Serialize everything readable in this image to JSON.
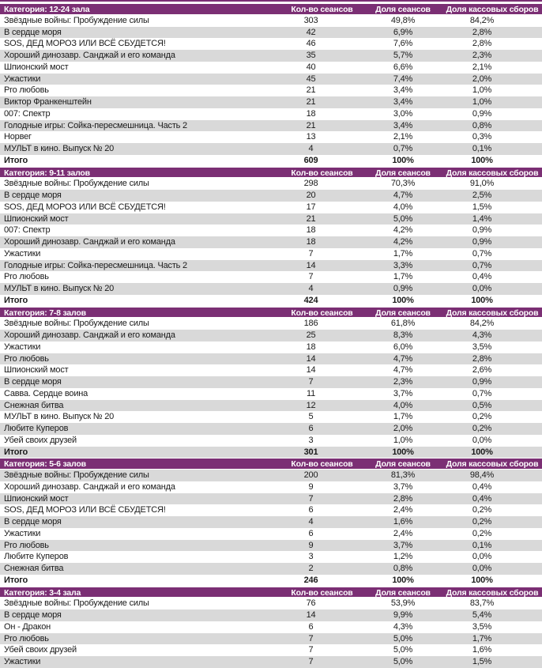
{
  "colors": {
    "header_bg": "#7B2F74",
    "stripe": "#D9D9D9"
  },
  "table": {
    "columns": {
      "sessions": "Кол-во сеансов",
      "session_share": "Доля сеансов",
      "boxoffice_share": "Доля кассовых сборов"
    },
    "total_label": "Итого",
    "sections": [
      {
        "category": "Категория: 12-24 зала",
        "rows": [
          {
            "title": "Звёздные войны: Пробуждение силы",
            "sessions": "303",
            "session_share": "49,8%",
            "boxoffice_share": "84,2%"
          },
          {
            "title": "В сердце моря",
            "sessions": "42",
            "session_share": "6,9%",
            "boxoffice_share": "2,8%"
          },
          {
            "title": "SOS, ДЕД МОРОЗ ИЛИ ВСЁ СБУДЕТСЯ!",
            "sessions": "46",
            "session_share": "7,6%",
            "boxoffice_share": "2,8%"
          },
          {
            "title": "Хороший динозавр. Санджай и его команда",
            "sessions": "35",
            "session_share": "5,7%",
            "boxoffice_share": "2,3%"
          },
          {
            "title": "Шпионский мост",
            "sessions": "40",
            "session_share": "6,6%",
            "boxoffice_share": "2,1%"
          },
          {
            "title": "Ужастики",
            "sessions": "45",
            "session_share": "7,4%",
            "boxoffice_share": "2,0%"
          },
          {
            "title": "Pro любовь",
            "sessions": "21",
            "session_share": "3,4%",
            "boxoffice_share": "1,0%"
          },
          {
            "title": "Виктор Франкенштейн",
            "sessions": "21",
            "session_share": "3,4%",
            "boxoffice_share": "1,0%"
          },
          {
            "title": "007: Спектр",
            "sessions": "18",
            "session_share": "3,0%",
            "boxoffice_share": "0,9%"
          },
          {
            "title": "Голодные игры: Сойка-пересмешница. Часть 2",
            "sessions": "21",
            "session_share": "3,4%",
            "boxoffice_share": "0,8%"
          },
          {
            "title": "Норвег",
            "sessions": "13",
            "session_share": "2,1%",
            "boxoffice_share": "0,3%"
          },
          {
            "title": "МУЛЬТ в кино. Выпуск № 20",
            "sessions": "4",
            "session_share": "0,7%",
            "boxoffice_share": "0,1%"
          }
        ],
        "total": {
          "sessions": "609",
          "session_share": "100%",
          "boxoffice_share": "100%"
        }
      },
      {
        "category": "Категория: 9-11 залов",
        "rows": [
          {
            "title": "Звёздные войны: Пробуждение силы",
            "sessions": "298",
            "session_share": "70,3%",
            "boxoffice_share": "91,0%"
          },
          {
            "title": "В сердце моря",
            "sessions": "20",
            "session_share": "4,7%",
            "boxoffice_share": "2,5%"
          },
          {
            "title": "SOS, ДЕД МОРОЗ ИЛИ ВСЁ СБУДЕТСЯ!",
            "sessions": "17",
            "session_share": "4,0%",
            "boxoffice_share": "1,5%"
          },
          {
            "title": "Шпионский мост",
            "sessions": "21",
            "session_share": "5,0%",
            "boxoffice_share": "1,4%"
          },
          {
            "title": "007: Спектр",
            "sessions": "18",
            "session_share": "4,2%",
            "boxoffice_share": "0,9%"
          },
          {
            "title": "Хороший динозавр. Санджай и его команда",
            "sessions": "18",
            "session_share": "4,2%",
            "boxoffice_share": "0,9%"
          },
          {
            "title": "Ужастики",
            "sessions": "7",
            "session_share": "1,7%",
            "boxoffice_share": "0,7%"
          },
          {
            "title": "Голодные игры: Сойка-пересмешница. Часть 2",
            "sessions": "14",
            "session_share": "3,3%",
            "boxoffice_share": "0,7%"
          },
          {
            "title": "Pro любовь",
            "sessions": "7",
            "session_share": "1,7%",
            "boxoffice_share": "0,4%"
          },
          {
            "title": "МУЛЬТ в кино. Выпуск № 20",
            "sessions": "4",
            "session_share": "0,9%",
            "boxoffice_share": "0,0%"
          }
        ],
        "total": {
          "sessions": "424",
          "session_share": "100%",
          "boxoffice_share": "100%"
        }
      },
      {
        "category": "Категория: 7-8 залов",
        "rows": [
          {
            "title": "Звёздные войны: Пробуждение силы",
            "sessions": "186",
            "session_share": "61,8%",
            "boxoffice_share": "84,2%"
          },
          {
            "title": "Хороший динозавр. Санджай и его команда",
            "sessions": "25",
            "session_share": "8,3%",
            "boxoffice_share": "4,3%"
          },
          {
            "title": "Ужастики",
            "sessions": "18",
            "session_share": "6,0%",
            "boxoffice_share": "3,5%"
          },
          {
            "title": "Pro любовь",
            "sessions": "14",
            "session_share": "4,7%",
            "boxoffice_share": "2,8%"
          },
          {
            "title": "Шпионский мост",
            "sessions": "14",
            "session_share": "4,7%",
            "boxoffice_share": "2,6%"
          },
          {
            "title": "В сердце моря",
            "sessions": "7",
            "session_share": "2,3%",
            "boxoffice_share": "0,9%"
          },
          {
            "title": "Савва. Сердце воина",
            "sessions": "11",
            "session_share": "3,7%",
            "boxoffice_share": "0,7%"
          },
          {
            "title": "Снежная битва",
            "sessions": "12",
            "session_share": "4,0%",
            "boxoffice_share": "0,5%"
          },
          {
            "title": "МУЛЬТ в кино. Выпуск № 20",
            "sessions": "5",
            "session_share": "1,7%",
            "boxoffice_share": "0,2%"
          },
          {
            "title": "Любите Куперов",
            "sessions": "6",
            "session_share": "2,0%",
            "boxoffice_share": "0,2%"
          },
          {
            "title": "Убей своих друзей",
            "sessions": "3",
            "session_share": "1,0%",
            "boxoffice_share": "0,0%"
          }
        ],
        "total": {
          "sessions": "301",
          "session_share": "100%",
          "boxoffice_share": "100%"
        }
      },
      {
        "category": "Категория: 5-6 залов",
        "rows": [
          {
            "title": "Звёздные войны: Пробуждение силы",
            "sessions": "200",
            "session_share": "81,3%",
            "boxoffice_share": "98,4%"
          },
          {
            "title": "Хороший динозавр. Санджай и его команда",
            "sessions": "9",
            "session_share": "3,7%",
            "boxoffice_share": "0,4%"
          },
          {
            "title": "Шпионский мост",
            "sessions": "7",
            "session_share": "2,8%",
            "boxoffice_share": "0,4%"
          },
          {
            "title": "SOS, ДЕД МОРОЗ ИЛИ ВСЁ СБУДЕТСЯ!",
            "sessions": "6",
            "session_share": "2,4%",
            "boxoffice_share": "0,2%"
          },
          {
            "title": "В сердце моря",
            "sessions": "4",
            "session_share": "1,6%",
            "boxoffice_share": "0,2%"
          },
          {
            "title": "Ужастики",
            "sessions": "6",
            "session_share": "2,4%",
            "boxoffice_share": "0,2%"
          },
          {
            "title": "Pro любовь",
            "sessions": "9",
            "session_share": "3,7%",
            "boxoffice_share": "0,1%"
          },
          {
            "title": "Любите Куперов",
            "sessions": "3",
            "session_share": "1,2%",
            "boxoffice_share": "0,0%"
          },
          {
            "title": "Снежная битва",
            "sessions": "2",
            "session_share": "0,8%",
            "boxoffice_share": "0,0%"
          }
        ],
        "total": {
          "sessions": "246",
          "session_share": "100%",
          "boxoffice_share": "100%"
        }
      },
      {
        "category": "Категория: 3-4 зала",
        "rows": [
          {
            "title": "Звёздные войны: Пробуждение силы",
            "sessions": "76",
            "session_share": "53,9%",
            "boxoffice_share": "83,7%"
          },
          {
            "title": "В сердце моря",
            "sessions": "14",
            "session_share": "9,9%",
            "boxoffice_share": "5,4%"
          },
          {
            "title": "Он - Дракон",
            "sessions": "6",
            "session_share": "4,3%",
            "boxoffice_share": "3,5%"
          },
          {
            "title": "Pro любовь",
            "sessions": "7",
            "session_share": "5,0%",
            "boxoffice_share": "1,7%"
          },
          {
            "title": "Убей своих друзей",
            "sessions": "7",
            "session_share": "5,0%",
            "boxoffice_share": "1,6%"
          },
          {
            "title": "Ужастики",
            "sessions": "7",
            "session_share": "5,0%",
            "boxoffice_share": "1,5%"
          }
        ]
      }
    ]
  }
}
